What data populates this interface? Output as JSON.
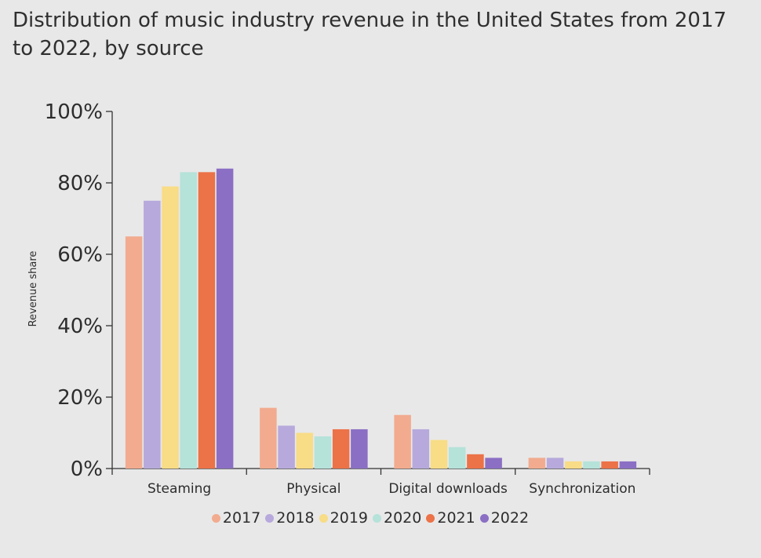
{
  "chart_data": {
    "type": "bar",
    "title": "Distribution of music industry revenue in the United States from 2017 to 2022, by source",
    "xlabel": "",
    "ylabel": "Revenue share",
    "ylim": [
      0,
      100
    ],
    "yticks": [
      "0%",
      "20%",
      "40%",
      "60%",
      "80%",
      "100%"
    ],
    "categories": [
      "Steaming",
      "Physical",
      "Digital downloads",
      "Synchronization"
    ],
    "series": [
      {
        "name": "2017",
        "color": "#f2ab8f",
        "values": [
          65,
          17,
          15,
          3
        ]
      },
      {
        "name": "2018",
        "color": "#b7a9dc",
        "values": [
          75,
          12,
          11,
          3
        ]
      },
      {
        "name": "2019",
        "color": "#f8dc86",
        "values": [
          79,
          10,
          8,
          2
        ]
      },
      {
        "name": "2020",
        "color": "#b5e2d9",
        "values": [
          83,
          9,
          6,
          2
        ]
      },
      {
        "name": "2021",
        "color": "#ec7248",
        "values": [
          83,
          11,
          4,
          2
        ]
      },
      {
        "name": "2022",
        "color": "#8b6fc4",
        "values": [
          84,
          11,
          3,
          2
        ]
      }
    ],
    "grid": false,
    "legend_position": "bottom"
  }
}
